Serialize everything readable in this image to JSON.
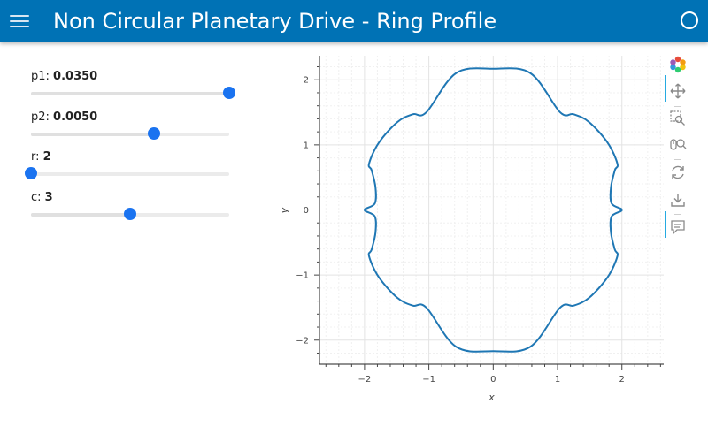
{
  "header": {
    "title": "Non Circular Planetary Drive - Ring Profile"
  },
  "sliders": [
    {
      "label": "p1",
      "value_text": "0.0350",
      "fraction": 1.0
    },
    {
      "label": "p2",
      "value_text": "0.0050",
      "fraction": 0.62
    },
    {
      "label": "r",
      "value_text": "2",
      "fraction": 0.0
    },
    {
      "label": "c",
      "value_text": "3",
      "fraction": 0.5
    }
  ],
  "toolbar": {
    "tools": [
      "bokeh-logo-icon",
      "pan-icon",
      "box-zoom-icon",
      "wheel-zoom-icon",
      "reset-icon",
      "save-icon",
      "hover-icon"
    ]
  },
  "colors": {
    "header_bg": "#0072b5",
    "accent": "#1a73f0",
    "curve": "#1f77b4"
  },
  "chart_data": {
    "type": "line",
    "title": "",
    "xlabel": "x",
    "ylabel": "y",
    "xlim": [
      -2.7,
      2.65
    ],
    "ylim": [
      -2.37,
      2.37
    ],
    "x_ticks": [
      -2,
      -1,
      0,
      1,
      2
    ],
    "y_ticks": [
      -2,
      -1,
      0,
      1,
      2
    ],
    "x_tick_labels": [
      "−2",
      "−1",
      "0",
      "1",
      "2"
    ],
    "y_tick_labels": [
      "−2",
      "−1",
      "0",
      "1",
      "2"
    ],
    "grid": true,
    "series": [
      {
        "color": "#1f77b4",
        "x": [
          2.0,
          1.84,
          1.83,
          1.89,
          1.93,
          1.78,
          1.49,
          1.25,
          1.04,
          0.58,
          0.0,
          -0.58,
          -1.04,
          -1.25,
          -1.49,
          -1.78,
          -1.93,
          -1.89,
          -1.83,
          -1.84,
          -2.0,
          -1.84,
          -1.83,
          -1.89,
          -1.93,
          -1.78,
          -1.49,
          -1.25,
          -1.04,
          -0.58,
          0.0,
          0.58,
          1.04,
          1.25,
          1.49,
          1.78,
          1.93,
          1.89,
          1.83,
          1.84,
          2.0
        ],
        "y": [
          0.0,
          0.1,
          0.35,
          0.61,
          0.71,
          1.03,
          1.35,
          1.47,
          1.5,
          2.1,
          2.17,
          2.1,
          1.5,
          1.47,
          1.35,
          1.03,
          0.71,
          0.61,
          0.35,
          0.1,
          0.0,
          -0.1,
          -0.35,
          -0.61,
          -0.71,
          -1.03,
          -1.35,
          -1.47,
          -1.5,
          -2.1,
          -2.17,
          -2.1,
          -1.5,
          -1.47,
          -1.35,
          -1.03,
          -0.71,
          -0.61,
          -0.35,
          -0.1,
          0.0
        ]
      }
    ]
  }
}
